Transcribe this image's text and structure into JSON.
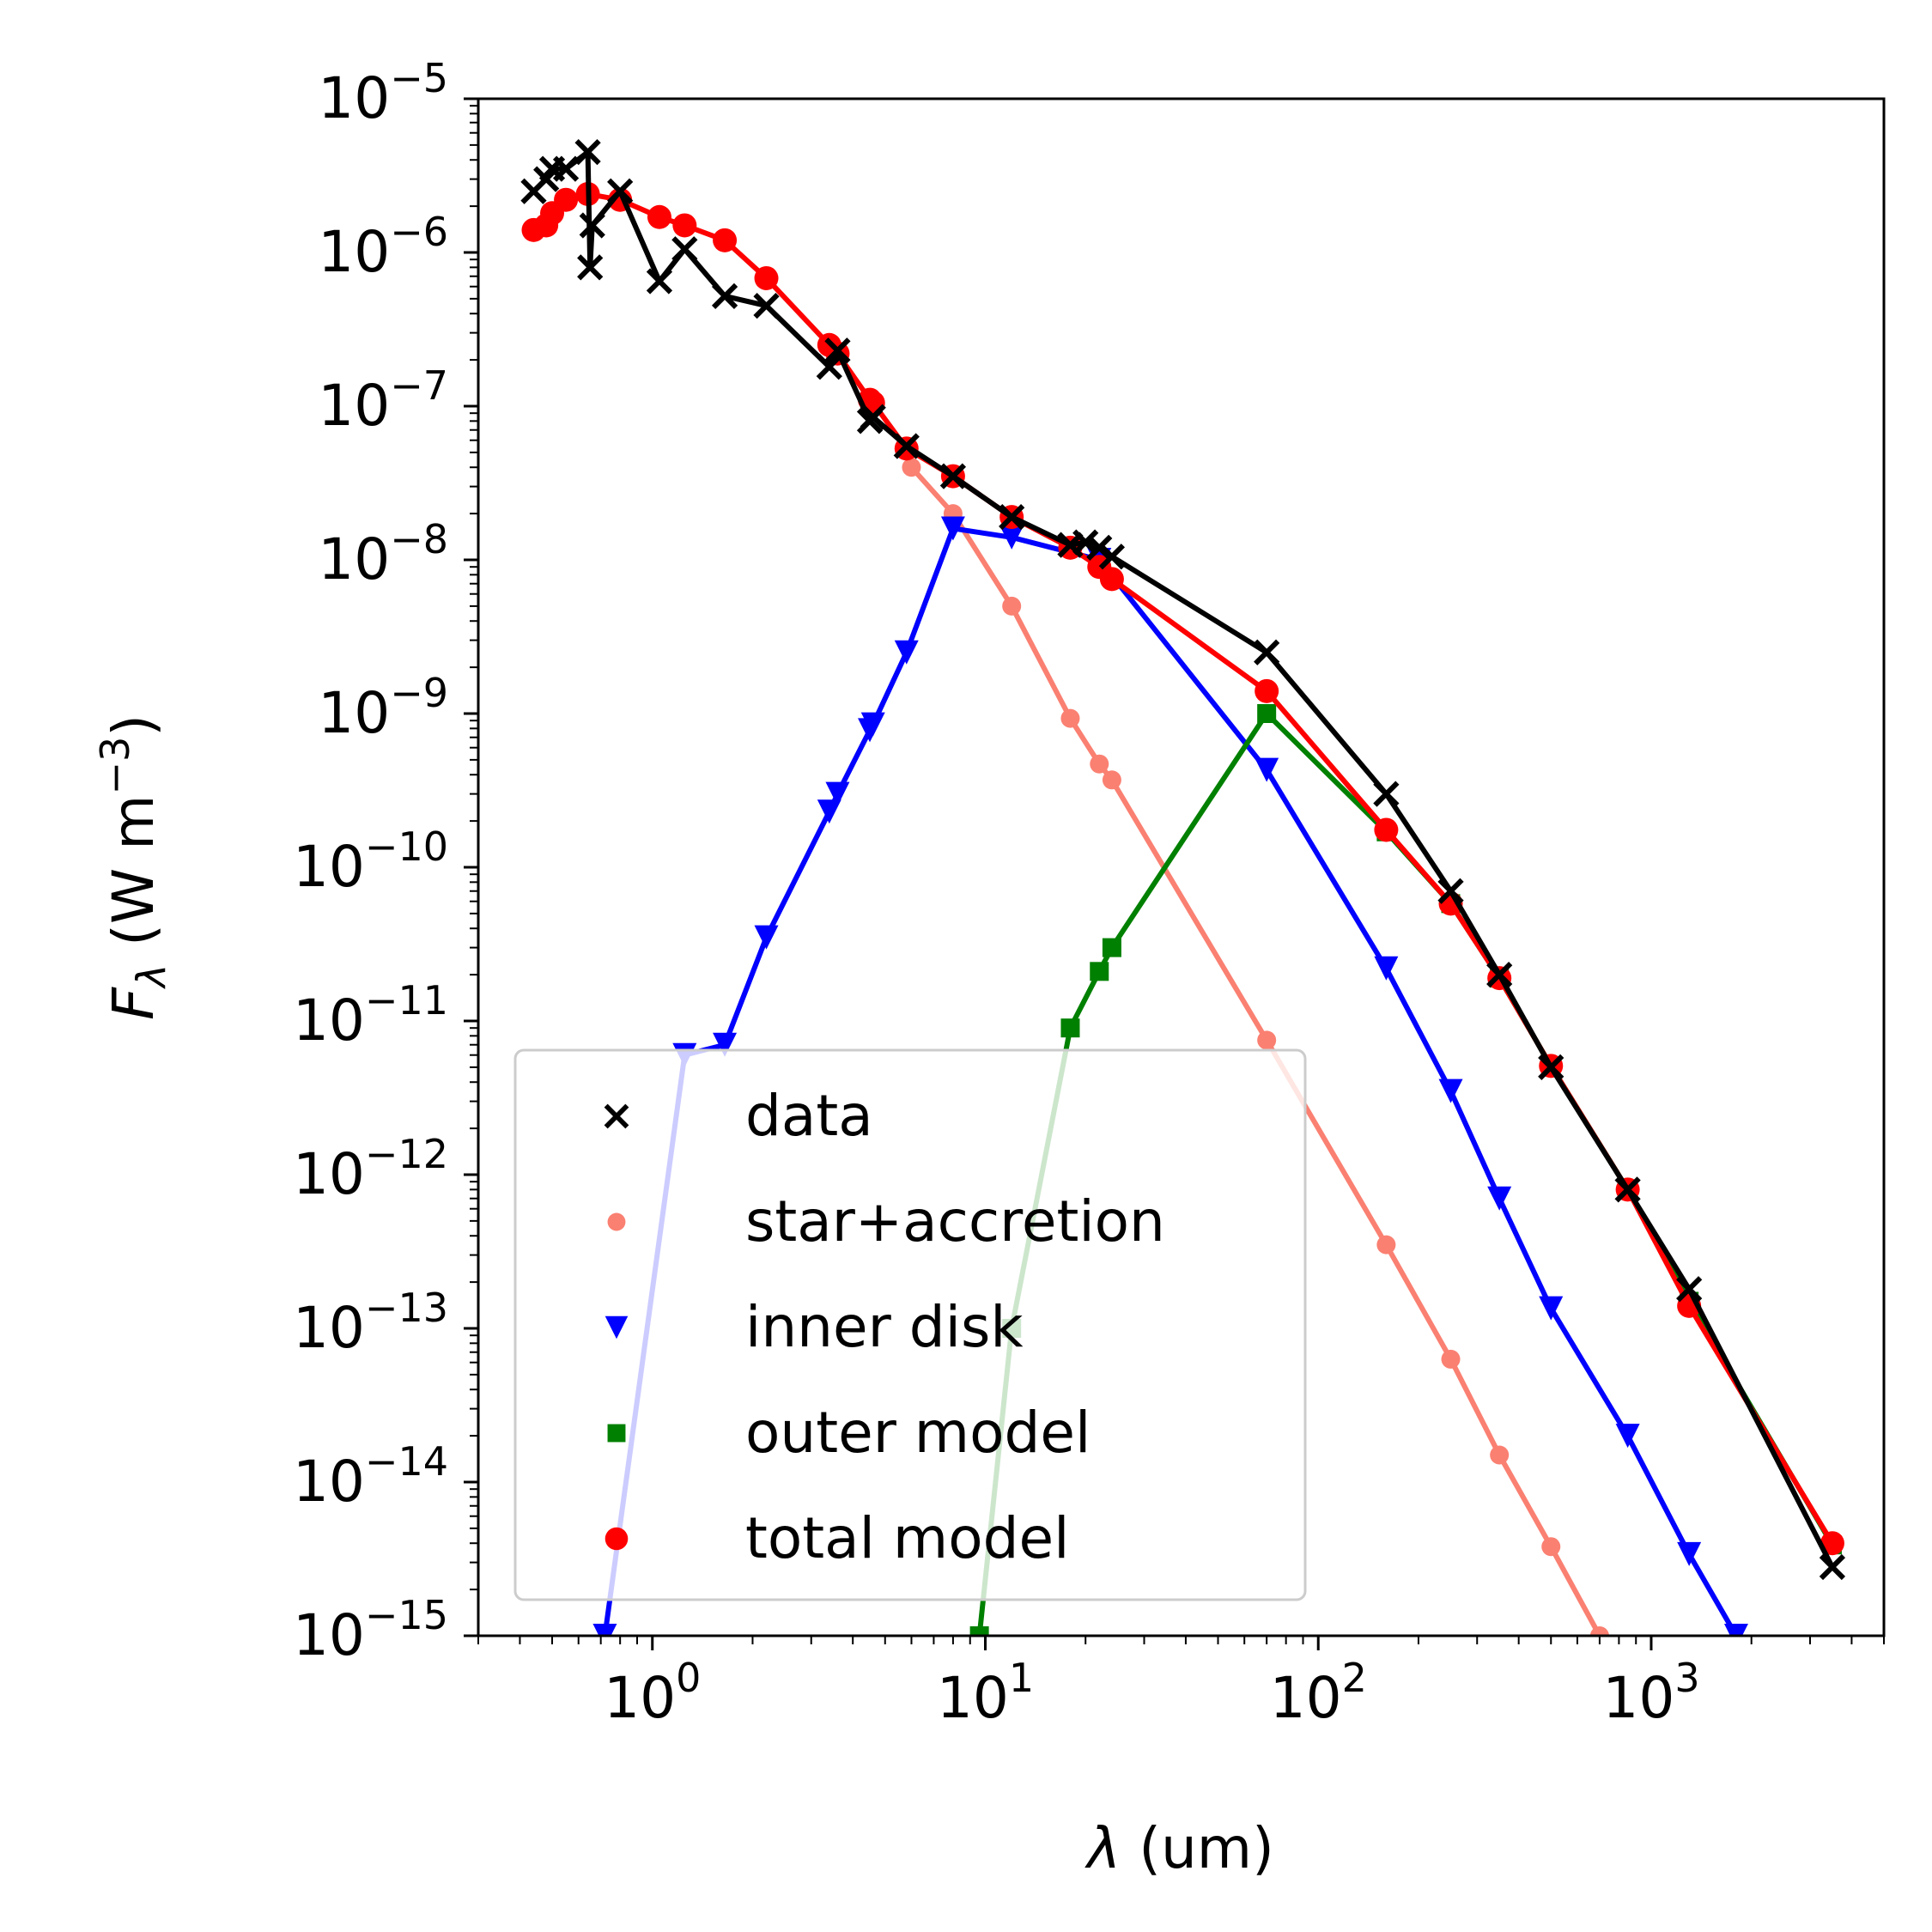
{
  "chart_data": {
    "type": "line",
    "xscale": "log",
    "yscale": "log",
    "xlim": [
      0.3,
      5000
    ],
    "ylim": [
      1e-15,
      1e-05
    ],
    "xlabel": "λ (um)",
    "ylabel": "Fλ (W m⁻³)",
    "xlabel_parts": {
      "symbol": "λ",
      "rest": " (um)"
    },
    "ylabel_parts": {
      "symbol": "F",
      "sub": "λ",
      "rest": " (W m",
      "sup": "−3",
      "close": ")"
    },
    "x_ticks": [
      {
        "base": "10",
        "exp": "0",
        "value": 1
      },
      {
        "base": "10",
        "exp": "1",
        "value": 10
      },
      {
        "base": "10",
        "exp": "2",
        "value": 100
      },
      {
        "base": "10",
        "exp": "3",
        "value": 1000
      }
    ],
    "y_ticks": [
      {
        "base": "10",
        "exp": "−5",
        "value": 1e-05
      },
      {
        "base": "10",
        "exp": "−6",
        "value": 1e-06
      },
      {
        "base": "10",
        "exp": "−7",
        "value": 1e-07
      },
      {
        "base": "10",
        "exp": "−8",
        "value": 1e-08
      },
      {
        "base": "10",
        "exp": "−9",
        "value": 1e-09
      },
      {
        "base": "10",
        "exp": "−10",
        "value": 1e-10
      },
      {
        "base": "10",
        "exp": "−11",
        "value": 1e-11
      },
      {
        "base": "10",
        "exp": "−12",
        "value": 1e-12
      },
      {
        "base": "10",
        "exp": "−13",
        "value": 1e-13
      },
      {
        "base": "10",
        "exp": "−14",
        "value": 1e-14
      },
      {
        "base": "10",
        "exp": "−15",
        "value": 1e-15
      }
    ],
    "legend": {
      "placement": "lower-left"
    },
    "series": [
      {
        "name": "star+accretion",
        "color": "#fa8072",
        "marker": "circle-small",
        "x": [
          6,
          8,
          12,
          18,
          22,
          24,
          70,
          160,
          250,
          350,
          500,
          700
        ],
        "y": [
          4e-08,
          2e-08,
          5e-09,
          9.3e-10,
          4.7e-10,
          3.7e-10,
          7.5e-12,
          3.5e-13,
          6.3e-14,
          1.5e-14,
          3.8e-15,
          1e-15
        ]
      },
      {
        "name": "inner disk",
        "color": "#0000ff",
        "marker": "triangle-down",
        "x": [
          0.72,
          1.25,
          1.65,
          2.2,
          3.4,
          3.6,
          4.5,
          4.6,
          5.8,
          8.0,
          12,
          22,
          70,
          160,
          250,
          350,
          500,
          850,
          1300,
          1800
        ],
        "y": [
          1e-15,
          6e-12,
          7e-12,
          3.5e-11,
          2.3e-10,
          3e-10,
          7.8e-10,
          8.5e-10,
          2.5e-09,
          1.6e-08,
          1.4e-08,
          1e-08,
          4.3e-10,
          2.2e-11,
          3.5e-12,
          7e-13,
          1.35e-13,
          2e-14,
          3.4e-15,
          1e-15
        ]
      },
      {
        "name": "outer model",
        "color": "#008000",
        "marker": "square",
        "x": [
          9.6,
          12,
          18,
          22,
          24,
          70,
          160,
          250,
          350,
          500,
          850,
          1300,
          3500
        ],
        "y": [
          1e-15,
          1e-13,
          9e-12,
          2.1e-11,
          3e-11,
          1e-09,
          1.7e-10,
          5.8e-11,
          1.9e-11,
          5.1e-12,
          8e-13,
          1.5e-13,
          3.9e-15
        ]
      },
      {
        "name": "total model",
        "color": "#ff0000",
        "marker": "circle",
        "x": [
          0.44,
          0.48,
          0.5,
          0.55,
          0.64,
          0.8,
          1.05,
          1.25,
          1.65,
          2.2,
          3.4,
          3.6,
          4.5,
          4.6,
          5.8,
          8.0,
          12,
          18,
          22,
          24,
          70,
          160,
          250,
          350,
          500,
          850,
          1300,
          3500
        ],
        "y": [
          1.4e-06,
          1.5e-06,
          1.8e-06,
          2.2e-06,
          2.4e-06,
          2.2e-06,
          1.7e-06,
          1.5e-06,
          1.2e-06,
          6.8e-07,
          2.5e-07,
          2.2e-07,
          1.1e-07,
          1.05e-07,
          5.3e-08,
          3.5e-08,
          1.9e-08,
          1.2e-08,
          9e-09,
          7.5e-09,
          1.4e-09,
          1.75e-10,
          5.8e-11,
          1.9e-11,
          5.1e-12,
          8e-13,
          1.4e-13,
          4e-15
        ]
      },
      {
        "name": "data",
        "color": "#000000",
        "marker": "x",
        "x": [
          0.44,
          0.48,
          0.5,
          0.55,
          0.64,
          0.65,
          0.66,
          0.8,
          1.05,
          1.25,
          1.65,
          2.2,
          3.4,
          3.6,
          4.5,
          4.6,
          5.8,
          8.0,
          12,
          18,
          20,
          22,
          24,
          70,
          160,
          250,
          350,
          500,
          850,
          1300,
          3500
        ],
        "y": [
          2.5e-06,
          3e-06,
          3.5e-06,
          3.5e-06,
          4.5e-06,
          8e-07,
          1.5e-06,
          2.5e-06,
          6.5e-07,
          1.05e-06,
          5.2e-07,
          4.5e-07,
          1.8e-07,
          2.3e-07,
          8e-08,
          8.5e-08,
          5.5e-08,
          3.5e-08,
          1.9e-08,
          1.25e-08,
          1.3e-08,
          1.2e-08,
          1.05e-08,
          2.5e-09,
          3e-10,
          7e-11,
          2e-11,
          5e-12,
          8e-13,
          1.8e-13,
          2.8e-15
        ]
      }
    ],
    "legend_order": [
      "data",
      "star+accretion",
      "inner disk",
      "outer model",
      "total model"
    ]
  }
}
